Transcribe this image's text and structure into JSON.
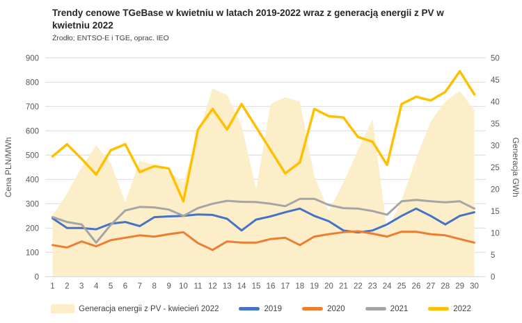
{
  "header": {
    "title": "Trendy cenowe TGeBase w kwietniu w latach 2019-2022 wraz z generacją energii z PV w kwietniu 2022",
    "source": "Źrodło; ENTSO-E i TGE, oprac. IEO"
  },
  "axes": {
    "left_label": "Cena PLN/MWh",
    "right_label": "Generacja GWh",
    "left_ticks": [
      0,
      100,
      200,
      300,
      400,
      500,
      600,
      700,
      800,
      900
    ],
    "right_ticks": [
      0,
      5,
      10,
      15,
      20,
      25,
      30,
      35,
      40,
      45,
      50
    ],
    "x_ticks": [
      1,
      2,
      3,
      4,
      5,
      6,
      7,
      8,
      9,
      10,
      11,
      12,
      13,
      14,
      15,
      16,
      17,
      18,
      19,
      20,
      21,
      22,
      23,
      24,
      25,
      26,
      27,
      28,
      29,
      30
    ]
  },
  "colors": {
    "grid": "#d9d9d9",
    "tick_text": "#595959",
    "area_fill": "#fbeec9",
    "blue": "#4472c4",
    "orange": "#ed7d31",
    "gray": "#a5a5a5",
    "yellow": "#ffc000"
  },
  "chart_data": {
    "type": "line",
    "title": "Trendy cenowe TGeBase w kwietniu w latach 2019-2022 wraz z generacją energii z PV w kwietniu 2022",
    "xlabel": "",
    "ylabel_left": "Cena PLN/MWh",
    "ylabel_right": "Generacja GWh",
    "ylim_left": [
      0,
      900
    ],
    "ylim_right": [
      0,
      50
    ],
    "grid": true,
    "legend_position": "bottom",
    "x": [
      1,
      2,
      3,
      4,
      5,
      6,
      7,
      8,
      9,
      10,
      11,
      12,
      13,
      14,
      15,
      16,
      17,
      18,
      19,
      20,
      21,
      22,
      23,
      24,
      25,
      26,
      27,
      28,
      29,
      30
    ],
    "series": [
      {
        "name": "Generacja energii z PV - kwiecień 2022",
        "type": "area",
        "axis": "right",
        "unit": "GWh",
        "color": "#fbeec9",
        "values": [
          14,
          19,
          25,
          30,
          26,
          17,
          26.5,
          25.5,
          24,
          21.5,
          32.5,
          43,
          41.5,
          34.5,
          20,
          39.5,
          41,
          40,
          23,
          15,
          21.5,
          29,
          36,
          10.5,
          17.5,
          27,
          35.5,
          40,
          42.5,
          38
        ]
      },
      {
        "name": "2019",
        "type": "line",
        "axis": "left",
        "unit": "PLN/MWh",
        "color": "#4472c4",
        "values": [
          240,
          200,
          200,
          195,
          218,
          225,
          208,
          245,
          248,
          250,
          256,
          254,
          238,
          190,
          235,
          248,
          265,
          280,
          250,
          228,
          190,
          182,
          190,
          215,
          250,
          280,
          250,
          215,
          250,
          265
        ]
      },
      {
        "name": "2020",
        "type": "line",
        "axis": "left",
        "unit": "PLN/MWh",
        "color": "#ed7d31",
        "values": [
          130,
          120,
          145,
          125,
          150,
          160,
          170,
          165,
          175,
          183,
          138,
          110,
          145,
          140,
          140,
          155,
          160,
          130,
          165,
          175,
          183,
          187,
          177,
          165,
          185,
          185,
          175,
          170,
          155,
          140
        ]
      },
      {
        "name": "2021",
        "type": "line",
        "axis": "left",
        "unit": "PLN/MWh",
        "color": "#a5a5a5",
        "values": [
          245,
          225,
          215,
          140,
          213,
          272,
          287,
          285,
          276,
          250,
          282,
          300,
          312,
          308,
          307,
          300,
          290,
          320,
          320,
          295,
          282,
          280,
          270,
          255,
          310,
          316,
          310,
          306,
          310,
          280
        ]
      },
      {
        "name": "2022",
        "type": "line",
        "axis": "left",
        "unit": "PLN/MWh",
        "color": "#ffc000",
        "values": [
          495,
          545,
          485,
          420,
          520,
          545,
          430,
          455,
          445,
          310,
          605,
          690,
          605,
          710,
          615,
          520,
          425,
          470,
          690,
          660,
          655,
          575,
          555,
          460,
          710,
          740,
          725,
          760,
          845,
          750
        ]
      }
    ]
  }
}
